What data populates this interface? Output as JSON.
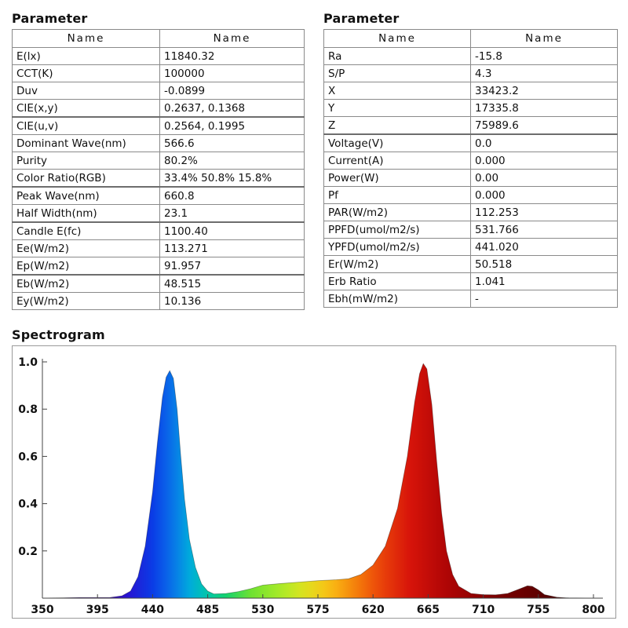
{
  "left_panel": {
    "title": "Parameter",
    "headers": [
      "Name",
      "Name"
    ],
    "rows": [
      {
        "name": "E(lx)",
        "value": "11840.32",
        "heavy": false
      },
      {
        "name": "CCT(K)",
        "value": "100000",
        "heavy": false
      },
      {
        "name": "Duv",
        "value": "-0.0899",
        "heavy": false
      },
      {
        "name": "CIE(x,y)",
        "value": "0.2637, 0.1368",
        "heavy": true
      },
      {
        "name": "CIE(u,v)",
        "value": "0.2564, 0.1995",
        "heavy": false
      },
      {
        "name": "Dominant Wave(nm)",
        "value": "566.6",
        "heavy": false
      },
      {
        "name": "Purity",
        "value": "80.2%",
        "heavy": false
      },
      {
        "name": "Color Ratio(RGB)",
        "value": "33.4% 50.8% 15.8%",
        "heavy": true
      },
      {
        "name": "Peak Wave(nm)",
        "value": "660.8",
        "heavy": false
      },
      {
        "name": "Half Width(nm)",
        "value": "23.1",
        "heavy": true
      },
      {
        "name": "Candle E(fc)",
        "value": "1100.40",
        "heavy": false
      },
      {
        "name": "Ee(W/m2)",
        "value": "113.271",
        "heavy": false
      },
      {
        "name": "Ep(W/m2)",
        "value": "91.957",
        "heavy": true
      },
      {
        "name": "Eb(W/m2)",
        "value": "48.515",
        "heavy": false
      },
      {
        "name": "Ey(W/m2)",
        "value": "10.136",
        "heavy": false
      }
    ]
  },
  "right_panel": {
    "title": "Parameter",
    "headers": [
      "Name",
      "Name"
    ],
    "rows": [
      {
        "name": "Ra",
        "value": "-15.8",
        "heavy": false
      },
      {
        "name": "S/P",
        "value": "4.3",
        "heavy": false
      },
      {
        "name": "X",
        "value": "33423.2",
        "heavy": false
      },
      {
        "name": "Y",
        "value": "17335.8",
        "heavy": false
      },
      {
        "name": "Z",
        "value": "75989.6",
        "heavy": true
      },
      {
        "name": "Voltage(V)",
        "value": "0.0",
        "heavy": false
      },
      {
        "name": "Current(A)",
        "value": "0.000",
        "heavy": false
      },
      {
        "name": "Power(W)",
        "value": "0.00",
        "heavy": false
      },
      {
        "name": "Pf",
        "value": "0.000",
        "heavy": false
      },
      {
        "name": "PAR(W/m2)",
        "value": "112.253",
        "heavy": false
      },
      {
        "name": "PPFD(umol/m2/s)",
        "value": "531.766",
        "heavy": false
      },
      {
        "name": "YPFD(umol/m2/s)",
        "value": "441.020",
        "heavy": false
      },
      {
        "name": "Er(W/m2)",
        "value": "50.518",
        "heavy": false
      },
      {
        "name": "Erb Ratio",
        "value": "1.041",
        "heavy": false
      },
      {
        "name": "Ebh(mW/m2)",
        "value": "-",
        "heavy": false
      }
    ]
  },
  "spectrogram": {
    "title": "Spectrogram"
  },
  "chart_data": {
    "type": "area",
    "title": "Spectrogram",
    "xlabel": "",
    "ylabel": "",
    "xlim": [
      350,
      800
    ],
    "ylim": [
      0,
      1.0
    ],
    "x_ticks": [
      350,
      395,
      440,
      485,
      530,
      575,
      620,
      665,
      710,
      755,
      800
    ],
    "y_ticks": [
      0.2,
      0.4,
      0.6,
      0.8,
      1.0
    ],
    "y_tick_labels": [
      "0.2",
      "0.4",
      "0.6",
      "0.8",
      "1.0"
    ],
    "grid": false,
    "fill": "wavelength-gradient",
    "x": [
      350,
      380,
      405,
      415,
      422,
      428,
      434,
      440,
      444,
      448,
      451,
      454,
      457,
      460,
      463,
      466,
      470,
      475,
      480,
      485,
      490,
      500,
      510,
      520,
      530,
      545,
      560,
      575,
      590,
      600,
      610,
      620,
      630,
      640,
      648,
      654,
      658,
      661,
      664,
      668,
      672,
      676,
      680,
      685,
      690,
      700,
      710,
      720,
      730,
      740,
      746,
      750,
      755,
      760,
      770,
      780,
      800
    ],
    "values": [
      0.0,
      0.003,
      0.003,
      0.01,
      0.03,
      0.09,
      0.22,
      0.45,
      0.66,
      0.85,
      0.935,
      0.963,
      0.93,
      0.8,
      0.6,
      0.42,
      0.25,
      0.13,
      0.06,
      0.03,
      0.018,
      0.02,
      0.028,
      0.04,
      0.055,
      0.062,
      0.068,
      0.074,
      0.078,
      0.082,
      0.1,
      0.14,
      0.22,
      0.38,
      0.6,
      0.83,
      0.95,
      0.993,
      0.97,
      0.82,
      0.58,
      0.36,
      0.2,
      0.1,
      0.05,
      0.02,
      0.015,
      0.014,
      0.02,
      0.04,
      0.052,
      0.05,
      0.035,
      0.015,
      0.004,
      0.001,
      0.0
    ]
  }
}
